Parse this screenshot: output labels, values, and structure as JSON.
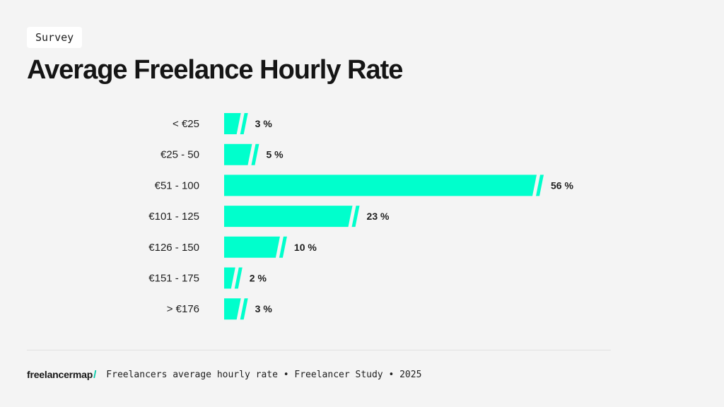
{
  "tag": "Survey",
  "title": "Average Freelance Hourly Rate",
  "footer": {
    "brand": "freelancermap",
    "brand_slash": "/",
    "caption": "Freelancers average hourly rate • Freelancer Study • 2025"
  },
  "colors": {
    "bar": "#00ffcc",
    "text": "#1e1e1e",
    "background": "#f4f4f4"
  },
  "chart_data": {
    "type": "bar",
    "orientation": "horizontal",
    "title": "Average Freelance Hourly Rate",
    "categories": [
      "< €25",
      "€25 - 50",
      "€51 - 100",
      "€101 - 125",
      "€126 - 150",
      "€151 - 175",
      "> €176"
    ],
    "values": [
      3,
      5,
      56,
      23,
      10,
      2,
      3
    ],
    "value_labels": [
      "3 %",
      "5 %",
      "56 %",
      "23 %",
      "10 %",
      "2 %",
      "3 %"
    ],
    "unit": "%",
    "xlim": [
      0,
      56
    ],
    "grid": false
  }
}
